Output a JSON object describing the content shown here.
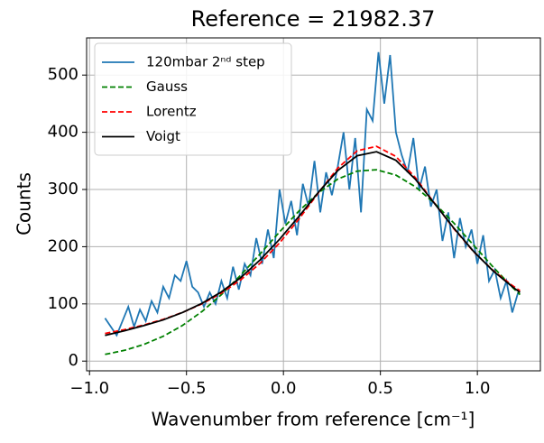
{
  "chart_data": {
    "type": "line",
    "title": "Reference = 21982.37",
    "xlabel": "Wavenumber from reference [cm⁻¹]",
    "ylabel": "Counts",
    "xlim": [
      -1.015,
      1.325
    ],
    "ylim": [
      -17,
      565
    ],
    "xticks": [
      {
        "value": -1,
        "label": "−1.0"
      },
      {
        "value": -0.5,
        "label": "−0.5"
      },
      {
        "value": 0,
        "label": "0.0"
      },
      {
        "value": 0.5,
        "label": "0.5"
      },
      {
        "value": 1,
        "label": "1.0"
      }
    ],
    "yticks": [
      0,
      100,
      200,
      300,
      400,
      500
    ],
    "grid": true,
    "legend": "upper left",
    "series": [
      {
        "name": "120mbar 2ⁿᵈ step",
        "color": "#1f77b4",
        "linestyle": "solid",
        "x": [
          -0.92,
          -0.89,
          -0.86,
          -0.83,
          -0.8,
          -0.77,
          -0.74,
          -0.71,
          -0.68,
          -0.65,
          -0.62,
          -0.59,
          -0.56,
          -0.53,
          -0.5,
          -0.47,
          -0.44,
          -0.41,
          -0.38,
          -0.35,
          -0.32,
          -0.29,
          -0.26,
          -0.23,
          -0.2,
          -0.17,
          -0.14,
          -0.11,
          -0.08,
          -0.05,
          -0.02,
          0.01,
          0.04,
          0.07,
          0.1,
          0.13,
          0.16,
          0.19,
          0.22,
          0.25,
          0.28,
          0.31,
          0.34,
          0.37,
          0.4,
          0.43,
          0.46,
          0.49,
          0.52,
          0.55,
          0.58,
          0.61,
          0.64,
          0.67,
          0.7,
          0.73,
          0.76,
          0.79,
          0.82,
          0.85,
          0.88,
          0.91,
          0.94,
          0.97,
          1.0,
          1.03,
          1.06,
          1.09,
          1.12,
          1.15,
          1.18,
          1.21
        ],
        "values": [
          75,
          60,
          45,
          70,
          95,
          60,
          90,
          70,
          105,
          85,
          130,
          110,
          150,
          140,
          175,
          130,
          120,
          95,
          120,
          100,
          140,
          110,
          165,
          125,
          170,
          150,
          215,
          170,
          230,
          180,
          300,
          240,
          280,
          220,
          310,
          270,
          350,
          260,
          330,
          290,
          340,
          400,
          300,
          390,
          260,
          440,
          420,
          540,
          450,
          535,
          400,
          360,
          330,
          390,
          300,
          340,
          270,
          300,
          210,
          260,
          180,
          250,
          200,
          230,
          170,
          220,
          140,
          160,
          110,
          140,
          85,
          120
        ]
      },
      {
        "name": "Gauss",
        "color": "green",
        "linestyle": "dashed",
        "x": [
          -0.92,
          -0.82,
          -0.72,
          -0.62,
          -0.52,
          -0.42,
          -0.32,
          -0.22,
          -0.12,
          -0.02,
          0.08,
          0.18,
          0.28,
          0.38,
          0.48,
          0.58,
          0.68,
          0.78,
          0.88,
          0.98,
          1.08,
          1.18,
          1.22
        ],
        "values": [
          11.7,
          18.8,
          29.1,
          43.4,
          62.4,
          86.7,
          116.2,
          150.3,
          187.5,
          225.8,
          262.3,
          294.1,
          318.2,
          332.1,
          334.5,
          325.1,
          304.8,
          275.8,
          240.8,
          202.9,
          164.9,
          129.3,
          116.2
        ]
      },
      {
        "name": "Lorentz",
        "color": "red",
        "linestyle": "dashed",
        "x": [
          -0.92,
          -0.82,
          -0.72,
          -0.62,
          -0.52,
          -0.42,
          -0.32,
          -0.22,
          -0.12,
          -0.02,
          0.08,
          0.18,
          0.28,
          0.38,
          0.48,
          0.58,
          0.68,
          0.78,
          0.88,
          0.98,
          1.08,
          1.18,
          1.22
        ],
        "values": [
          48.3,
          55.0,
          63.1,
          73.0,
          85.1,
          100.1,
          118.8,
          142.1,
          171.1,
          206.6,
          248.3,
          294.0,
          337.2,
          367.6,
          375.5,
          357.7,
          320.8,
          275.5,
          231.0,
          191.5,
          158.8,
          132.2,
          123.0
        ]
      },
      {
        "name": "Voigt",
        "color": "black",
        "linestyle": "solid",
        "x": [
          -0.92,
          -0.82,
          -0.72,
          -0.62,
          -0.52,
          -0.42,
          -0.32,
          -0.22,
          -0.12,
          -0.02,
          0.08,
          0.18,
          0.28,
          0.38,
          0.48,
          0.58,
          0.68,
          0.78,
          0.88,
          0.98,
          1.08,
          1.18,
          1.22
        ],
        "values": [
          45,
          53,
          62,
          72,
          85,
          101,
          121,
          146,
          177,
          213,
          253,
          295,
          333,
          359,
          366,
          351,
          318,
          275,
          232,
          192,
          158,
          130,
          120
        ]
      }
    ]
  }
}
